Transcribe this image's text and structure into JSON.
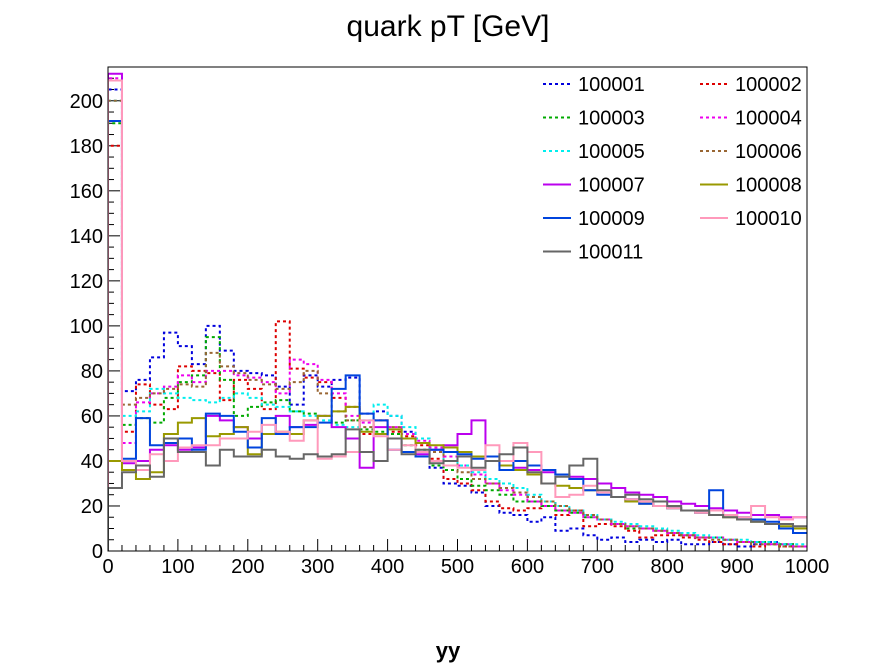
{
  "chart_data": {
    "type": "line",
    "subtype": "step-histogram",
    "title": "quark pT [GeV]",
    "xlabel": "yy",
    "ylabel": "",
    "xlim": [
      0,
      1000
    ],
    "ylim": [
      0,
      215
    ],
    "x_ticks": [
      0,
      100,
      200,
      300,
      400,
      500,
      600,
      700,
      800,
      900,
      1000
    ],
    "y_ticks": [
      0,
      20,
      40,
      60,
      80,
      100,
      120,
      140,
      160,
      180,
      200
    ],
    "bin_width": 20,
    "grid": false,
    "legend_position": "top-right",
    "legend_columns": 2,
    "series": [
      {
        "name": "100001",
        "color": "#0000dd",
        "style": "dotted",
        "values": [
          205,
          71,
          76,
          86,
          97,
          91,
          83,
          100,
          89,
          80,
          79,
          78,
          73,
          65,
          78,
          73,
          76,
          77,
          61,
          62,
          60,
          53,
          42,
          37,
          30,
          29,
          26,
          20,
          17,
          16,
          13,
          15,
          9,
          10,
          7,
          5,
          6,
          4,
          5,
          4,
          5,
          3,
          3,
          4,
          3,
          2,
          3,
          4,
          3,
          2
        ]
      },
      {
        "name": "100002",
        "color": "#dd0000",
        "style": "dotted",
        "values": [
          180,
          53,
          74,
          65,
          63,
          82,
          80,
          79,
          67,
          76,
          72,
          63,
          102,
          81,
          77,
          75,
          68,
          64,
          52,
          58,
          53,
          51,
          47,
          41,
          32,
          30,
          27,
          22,
          19,
          18,
          19,
          22,
          16,
          18,
          11,
          12,
          11,
          9,
          6,
          7,
          7,
          6,
          5,
          4,
          3,
          4,
          2,
          3,
          2,
          2
        ]
      },
      {
        "name": "100003",
        "color": "#00aa00",
        "style": "dotted",
        "values": [
          190,
          56,
          59,
          57,
          68,
          75,
          78,
          95,
          76,
          60,
          64,
          66,
          67,
          62,
          61,
          60,
          57,
          58,
          54,
          53,
          52,
          47,
          45,
          38,
          36,
          32,
          29,
          27,
          25,
          22,
          22,
          20,
          18,
          17,
          15,
          14,
          12,
          10,
          10,
          9,
          8,
          7,
          6,
          6,
          5,
          4,
          4,
          3,
          3,
          2
        ]
      },
      {
        "name": "100004",
        "color": "#ee00ee",
        "style": "dotted",
        "values": [
          210,
          48,
          66,
          70,
          73,
          78,
          75,
          80,
          80,
          78,
          77,
          75,
          70,
          85,
          83,
          76,
          70,
          60,
          57,
          58,
          55,
          52,
          49,
          46,
          42,
          38,
          34,
          30,
          27,
          25,
          22,
          20,
          18,
          17,
          15,
          14,
          12,
          11,
          10,
          9,
          8,
          7,
          6,
          6,
          5,
          4,
          4,
          3,
          3,
          2
        ]
      },
      {
        "name": "100005",
        "color": "#00eeee",
        "style": "dotted",
        "values": [
          200,
          60,
          62,
          72,
          70,
          68,
          67,
          66,
          68,
          70,
          68,
          65,
          64,
          62,
          60,
          58,
          56,
          55,
          58,
          65,
          60,
          55,
          50,
          45,
          40,
          38,
          35,
          32,
          30,
          28,
          25,
          22,
          20,
          18,
          16,
          14,
          13,
          12,
          11,
          10,
          9,
          8,
          7,
          6,
          5,
          5,
          4,
          4,
          3,
          3
        ]
      },
      {
        "name": "100006",
        "color": "#996633",
        "style": "dotted",
        "values": [
          200,
          65,
          68,
          70,
          72,
          74,
          73,
          88,
          82,
          79,
          76,
          74,
          72,
          75,
          80,
          70,
          62,
          58,
          55,
          58,
          55,
          50,
          48,
          44,
          40,
          35,
          32,
          30,
          28,
          26,
          24,
          22,
          20,
          18,
          16,
          14,
          12,
          11,
          10,
          9,
          8,
          7,
          6,
          5,
          5,
          4,
          3,
          3,
          2,
          2
        ]
      },
      {
        "name": "100007",
        "color": "#bb00ee",
        "style": "solid",
        "values": [
          212,
          39,
          40,
          45,
          47,
          45,
          46,
          60,
          58,
          55,
          50,
          52,
          60,
          55,
          56,
          60,
          55,
          50,
          37,
          55,
          50,
          44,
          43,
          45,
          47,
          52,
          58,
          40,
          38,
          37,
          36,
          35,
          34,
          33,
          32,
          30,
          28,
          26,
          25,
          24,
          22,
          21,
          20,
          19,
          18,
          17,
          16,
          16,
          15,
          15
        ]
      },
      {
        "name": "100008",
        "color": "#999900",
        "style": "solid",
        "values": [
          40,
          36,
          32,
          35,
          52,
          57,
          59,
          51,
          52,
          55,
          43,
          52,
          53,
          52,
          58,
          60,
          62,
          64,
          53,
          52,
          54,
          50,
          48,
          47,
          46,
          44,
          42,
          40,
          38,
          36,
          34,
          30,
          29,
          28,
          27,
          26,
          24,
          22,
          21,
          20,
          19,
          18,
          17,
          16,
          15,
          14,
          13,
          12,
          11,
          10
        ]
      },
      {
        "name": "100009",
        "color": "#0044dd",
        "style": "solid",
        "values": [
          191,
          41,
          59,
          47,
          48,
          50,
          45,
          61,
          60,
          53,
          46,
          59,
          52,
          55,
          55,
          57,
          72,
          78,
          61,
          58,
          45,
          44,
          42,
          45,
          44,
          43,
          41,
          42,
          36,
          40,
          38,
          36,
          34,
          32,
          27,
          25,
          24,
          23,
          21,
          20,
          19,
          18,
          17,
          27,
          16,
          15,
          14,
          13,
          10,
          8
        ]
      },
      {
        "name": "100010",
        "color": "#ff99bb",
        "style": "solid",
        "values": [
          209,
          40,
          36,
          43,
          40,
          46,
          47,
          47,
          50,
          50,
          53,
          56,
          53,
          49,
          58,
          41,
          42,
          44,
          58,
          51,
          45,
          47,
          44,
          40,
          38,
          37,
          36,
          47,
          40,
          48,
          44,
          30,
          24,
          25,
          29,
          26,
          24,
          23,
          22,
          20,
          19,
          18,
          17,
          18,
          16,
          15,
          20,
          15,
          14,
          15
        ]
      },
      {
        "name": "100011",
        "color": "#666666",
        "style": "solid",
        "values": [
          28,
          35,
          38,
          33,
          50,
          44,
          44,
          38,
          45,
          42,
          42,
          45,
          42,
          41,
          43,
          42,
          43,
          54,
          44,
          40,
          50,
          43,
          45,
          39,
          40,
          42,
          37,
          40,
          43,
          46,
          35,
          30,
          33,
          38,
          41,
          27,
          24,
          25,
          23,
          22,
          20,
          18,
          18,
          16,
          15,
          14,
          13,
          12,
          12,
          11
        ]
      }
    ]
  }
}
